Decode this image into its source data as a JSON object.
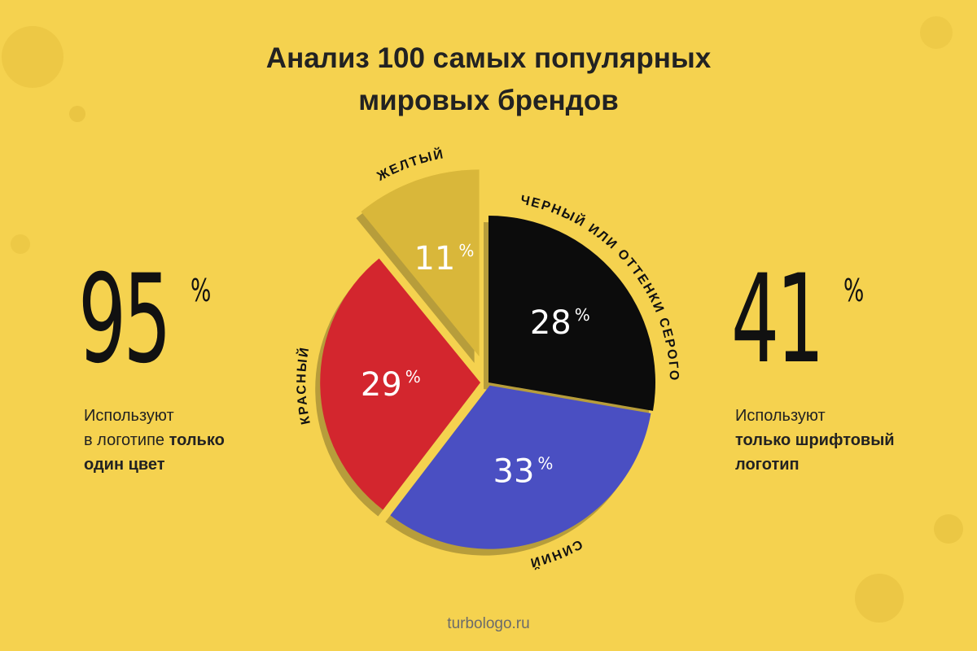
{
  "title": {
    "line1": "Анализ 100 самых популярных",
    "line2": "мировых брендов"
  },
  "stat_left": {
    "number": "95",
    "percent": "%",
    "line1": "Используют",
    "line2_plain": "в логотипе ",
    "line2_bold": "только",
    "line3_bold": "один цвет"
  },
  "stat_right": {
    "number": "41",
    "percent": "%",
    "line1": "Используют",
    "line2_bold": "только шрифтовый",
    "line3_bold": "логотип"
  },
  "footer": "turbologo.ru",
  "chart_data": {
    "type": "pie",
    "title": "Анализ 100 самых популярных мировых брендов",
    "percent_symbol": "%",
    "slices": [
      {
        "label": "ЧЕРНЫЙ ИЛИ ОТТЕНКИ СЕРОГО",
        "value": 28,
        "color": "#0c0c0c"
      },
      {
        "label": "СИНИЙ",
        "value": 33,
        "color": "#4a4fc2"
      },
      {
        "label": "КРАСНЫЙ",
        "value": 29,
        "color": "#d3262e"
      },
      {
        "label": "ЖЕЛТЫЙ",
        "value": 11,
        "color": "#d9b73a"
      }
    ]
  }
}
